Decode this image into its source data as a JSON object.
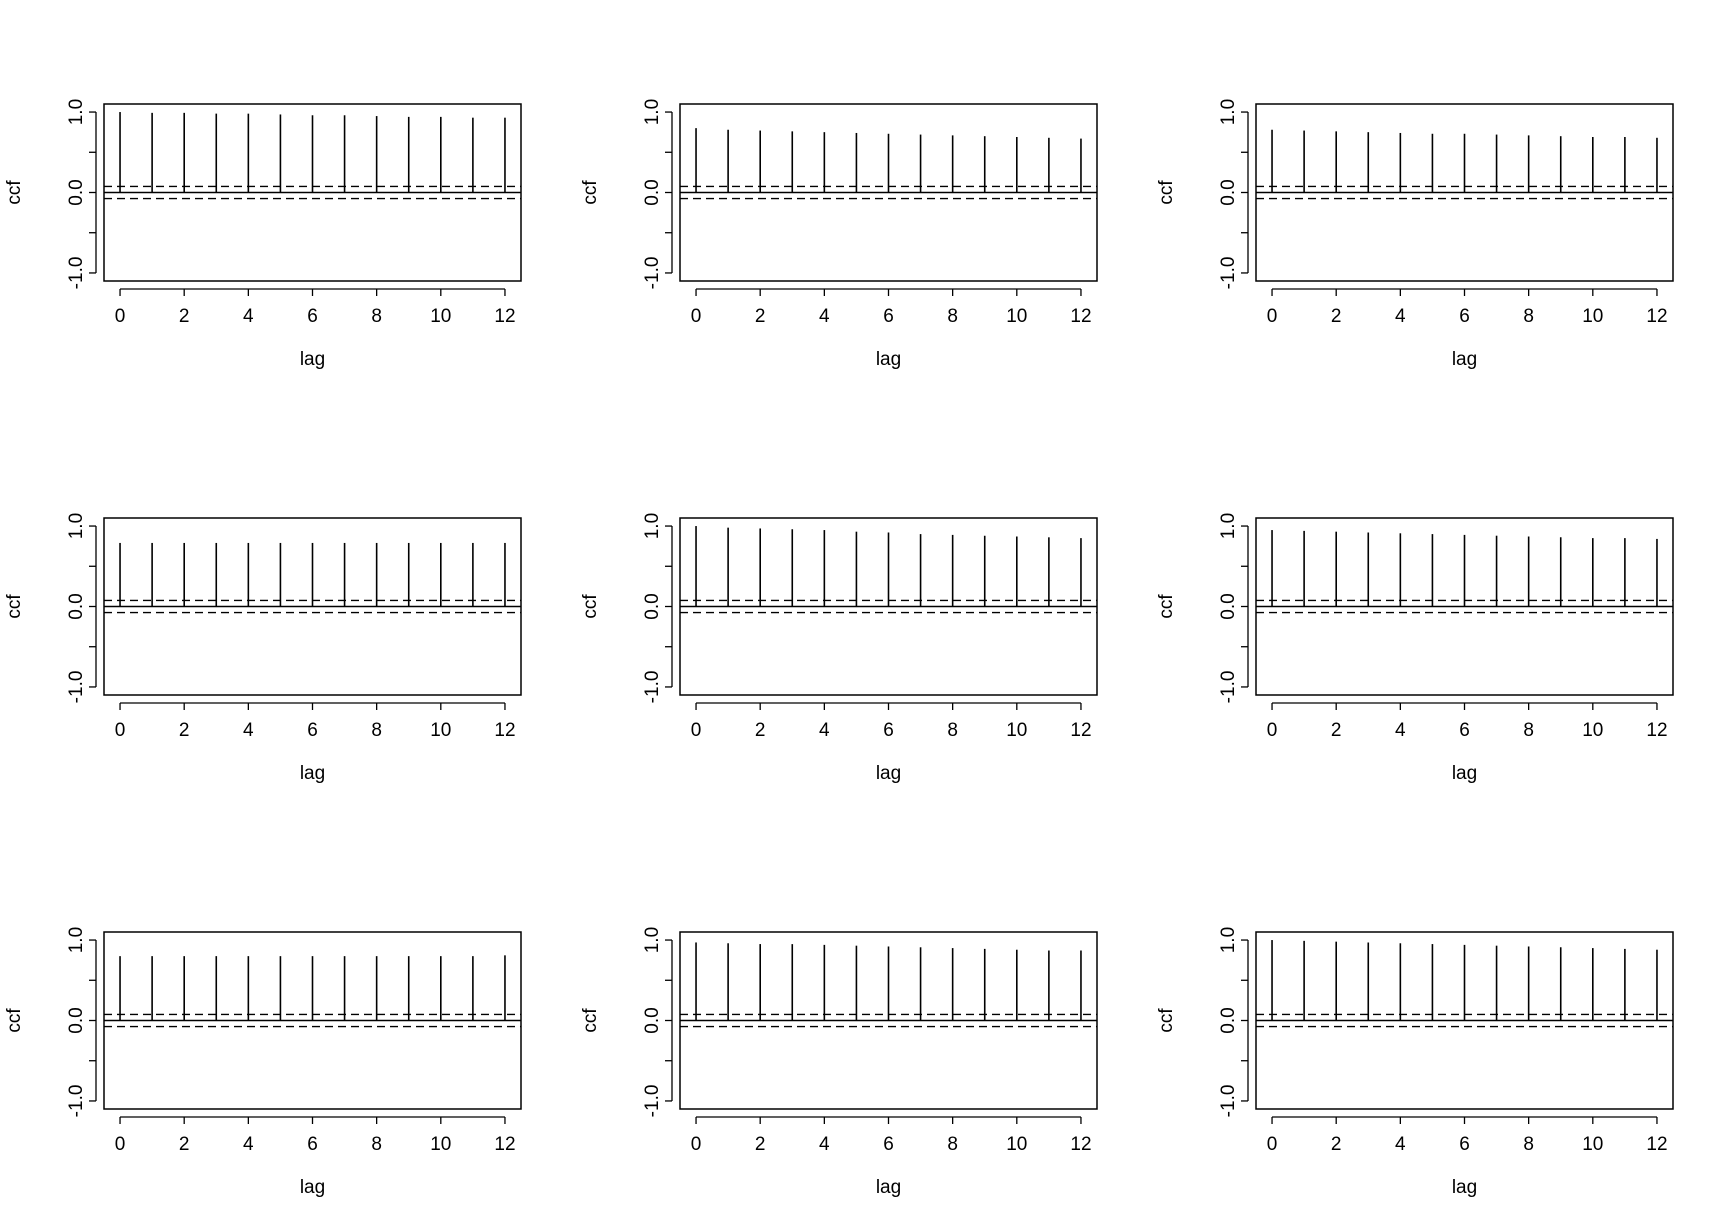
{
  "chart_data": [
    {
      "type": "bar",
      "xlabel": "lag",
      "ylabel": "ccf",
      "x": [
        0,
        1,
        2,
        3,
        4,
        5,
        6,
        7,
        8,
        9,
        10,
        11,
        12
      ],
      "values": [
        1.0,
        0.99,
        0.99,
        0.98,
        0.98,
        0.97,
        0.96,
        0.96,
        0.95,
        0.94,
        0.94,
        0.93,
        0.93
      ],
      "ci": 0.075,
      "xlim": [
        -0.5,
        12.5
      ],
      "ylim": [
        -1.1,
        1.1
      ],
      "xticks": [
        "0",
        "2",
        "4",
        "6",
        "8",
        "10",
        "12"
      ],
      "yticks": [
        "-1.0",
        "0.0",
        "1.0"
      ]
    },
    {
      "type": "bar",
      "xlabel": "lag",
      "ylabel": "ccf",
      "x": [
        0,
        1,
        2,
        3,
        4,
        5,
        6,
        7,
        8,
        9,
        10,
        11,
        12
      ],
      "values": [
        0.8,
        0.78,
        0.77,
        0.76,
        0.75,
        0.74,
        0.73,
        0.72,
        0.71,
        0.7,
        0.69,
        0.68,
        0.67
      ],
      "ci": 0.075,
      "xlim": [
        -0.5,
        12.5
      ],
      "ylim": [
        -1.1,
        1.1
      ],
      "xticks": [
        "0",
        "2",
        "4",
        "6",
        "8",
        "10",
        "12"
      ],
      "yticks": [
        "-1.0",
        "0.0",
        "1.0"
      ]
    },
    {
      "type": "bar",
      "xlabel": "lag",
      "ylabel": "ccf",
      "x": [
        0,
        1,
        2,
        3,
        4,
        5,
        6,
        7,
        8,
        9,
        10,
        11,
        12
      ],
      "values": [
        0.78,
        0.77,
        0.76,
        0.75,
        0.74,
        0.73,
        0.73,
        0.72,
        0.71,
        0.7,
        0.69,
        0.69,
        0.68
      ],
      "ci": 0.075,
      "xlim": [
        -0.5,
        12.5
      ],
      "ylim": [
        -1.1,
        1.1
      ],
      "xticks": [
        "0",
        "2",
        "4",
        "6",
        "8",
        "10",
        "12"
      ],
      "yticks": [
        "-1.0",
        "0.0",
        "1.0"
      ]
    },
    {
      "type": "bar",
      "xlabel": "lag",
      "ylabel": "ccf",
      "x": [
        0,
        1,
        2,
        3,
        4,
        5,
        6,
        7,
        8,
        9,
        10,
        11,
        12
      ],
      "values": [
        0.79,
        0.79,
        0.79,
        0.79,
        0.79,
        0.79,
        0.79,
        0.79,
        0.79,
        0.79,
        0.79,
        0.79,
        0.79
      ],
      "ci": 0.075,
      "xlim": [
        -0.5,
        12.5
      ],
      "ylim": [
        -1.1,
        1.1
      ],
      "xticks": [
        "0",
        "2",
        "4",
        "6",
        "8",
        "10",
        "12"
      ],
      "yticks": [
        "-1.0",
        "0.0",
        "1.0"
      ]
    },
    {
      "type": "bar",
      "xlabel": "lag",
      "ylabel": "ccf",
      "x": [
        0,
        1,
        2,
        3,
        4,
        5,
        6,
        7,
        8,
        9,
        10,
        11,
        12
      ],
      "values": [
        1.0,
        0.98,
        0.97,
        0.96,
        0.95,
        0.93,
        0.92,
        0.9,
        0.89,
        0.88,
        0.87,
        0.86,
        0.85
      ],
      "ci": 0.075,
      "xlim": [
        -0.5,
        12.5
      ],
      "ylim": [
        -1.1,
        1.1
      ],
      "xticks": [
        "0",
        "2",
        "4",
        "6",
        "8",
        "10",
        "12"
      ],
      "yticks": [
        "-1.0",
        "0.0",
        "1.0"
      ]
    },
    {
      "type": "bar",
      "xlabel": "lag",
      "ylabel": "ccf",
      "x": [
        0,
        1,
        2,
        3,
        4,
        5,
        6,
        7,
        8,
        9,
        10,
        11,
        12
      ],
      "values": [
        0.95,
        0.94,
        0.93,
        0.92,
        0.91,
        0.9,
        0.89,
        0.88,
        0.87,
        0.86,
        0.85,
        0.85,
        0.84
      ],
      "ci": 0.075,
      "xlim": [
        -0.5,
        12.5
      ],
      "ylim": [
        -1.1,
        1.1
      ],
      "xticks": [
        "0",
        "2",
        "4",
        "6",
        "8",
        "10",
        "12"
      ],
      "yticks": [
        "-1.0",
        "0.0",
        "1.0"
      ]
    },
    {
      "type": "bar",
      "xlabel": "lag",
      "ylabel": "ccf",
      "x": [
        0,
        1,
        2,
        3,
        4,
        5,
        6,
        7,
        8,
        9,
        10,
        11,
        12
      ],
      "values": [
        0.8,
        0.8,
        0.8,
        0.8,
        0.8,
        0.8,
        0.8,
        0.8,
        0.8,
        0.8,
        0.8,
        0.8,
        0.81
      ],
      "ci": 0.075,
      "xlim": [
        -0.5,
        12.5
      ],
      "ylim": [
        -1.1,
        1.1
      ],
      "xticks": [
        "0",
        "2",
        "4",
        "6",
        "8",
        "10",
        "12"
      ],
      "yticks": [
        "-1.0",
        "0.0",
        "1.0"
      ]
    },
    {
      "type": "bar",
      "xlabel": "lag",
      "ylabel": "ccf",
      "x": [
        0,
        1,
        2,
        3,
        4,
        5,
        6,
        7,
        8,
        9,
        10,
        11,
        12
      ],
      "values": [
        0.97,
        0.96,
        0.95,
        0.95,
        0.94,
        0.93,
        0.92,
        0.91,
        0.9,
        0.89,
        0.88,
        0.87,
        0.87
      ],
      "ci": 0.075,
      "xlim": [
        -0.5,
        12.5
      ],
      "ylim": [
        -1.1,
        1.1
      ],
      "xticks": [
        "0",
        "2",
        "4",
        "6",
        "8",
        "10",
        "12"
      ],
      "yticks": [
        "-1.0",
        "0.0",
        "1.0"
      ]
    },
    {
      "type": "bar",
      "xlabel": "lag",
      "ylabel": "ccf",
      "x": [
        0,
        1,
        2,
        3,
        4,
        5,
        6,
        7,
        8,
        9,
        10,
        11,
        12
      ],
      "values": [
        1.0,
        0.99,
        0.98,
        0.97,
        0.96,
        0.95,
        0.94,
        0.93,
        0.92,
        0.91,
        0.9,
        0.89,
        0.88
      ],
      "ci": 0.075,
      "xlim": [
        -0.5,
        12.5
      ],
      "ylim": [
        -1.1,
        1.1
      ],
      "xticks": [
        "0",
        "2",
        "4",
        "6",
        "8",
        "10",
        "12"
      ],
      "yticks": [
        "-1.0",
        "0.0",
        "1.0"
      ]
    }
  ]
}
